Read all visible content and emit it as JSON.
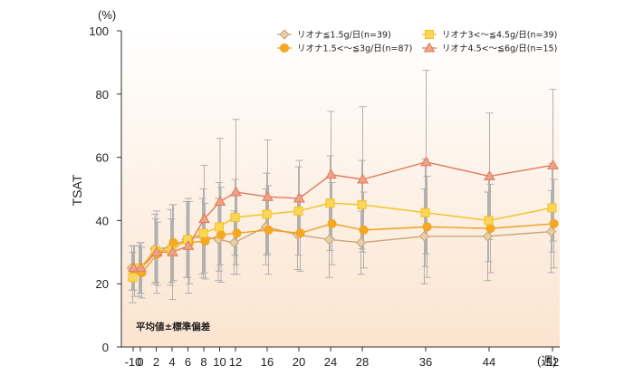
{
  "chart_data": {
    "type": "line",
    "ylabel": "TSAT",
    "yunit": "(%)",
    "xunit": "(週)",
    "note": "平均値±標準偏差",
    "ylim": [
      0,
      100
    ],
    "yticks": [
      0,
      20,
      40,
      60,
      80,
      100
    ],
    "xticks": [
      -10,
      0,
      2,
      4,
      6,
      8,
      10,
      12,
      16,
      20,
      24,
      28,
      36,
      44,
      52
    ],
    "xtick_labels": [
      "-10",
      "0",
      "2",
      "4",
      "6",
      "8",
      "10",
      "12",
      "16",
      "20",
      "24",
      "28",
      "36",
      "44",
      "52"
    ],
    "x": [
      -10,
      0,
      2,
      4,
      6,
      8,
      10,
      12,
      16,
      20,
      24,
      28,
      36,
      44,
      52
    ],
    "grid": false,
    "legend_position": "top-right",
    "colors": {
      "background_top": "#ffffff",
      "background_bottom": "#fbe4cf",
      "axis": "#333333",
      "errorbar": "#aaaaaa"
    },
    "series": [
      {
        "name": "リオナ≦1.5g/日(n=39)",
        "marker": "diamond",
        "color": "#c8a779",
        "fill": "#e6cfa6",
        "values": [
          25,
          24,
          31,
          31.5,
          34,
          35,
          34,
          33,
          38,
          35.5,
          34,
          33,
          35,
          35,
          36.5
        ],
        "sd": [
          7,
          8,
          11,
          12,
          12,
          12,
          13,
          10,
          12,
          11,
          12,
          10,
          15,
          14,
          13
        ]
      },
      {
        "name": "リオナ1.5<～≦3g/日(n=87)",
        "marker": "circle",
        "color": "#f0a020",
        "fill": "#f6a91e",
        "values": [
          24,
          23.5,
          29.5,
          33,
          33,
          33.5,
          35.5,
          36,
          37,
          36,
          39,
          37,
          38,
          37.5,
          39
        ],
        "sd": [
          8,
          8,
          10,
          12,
          13,
          12,
          15,
          13,
          14,
          12,
          13,
          12,
          16,
          14,
          14
        ]
      },
      {
        "name": "リオナ3<～≦4.5g/日(n=39)",
        "marker": "square",
        "color": "#f2c21c",
        "fill": "#fbd65a",
        "values": [
          22,
          25,
          30.5,
          30.5,
          34,
          36,
          38,
          41,
          42,
          43,
          45.5,
          45,
          42.5,
          40,
          44
        ],
        "sd": [
          8,
          8,
          10,
          10,
          12,
          14,
          14,
          12,
          13,
          14,
          15,
          14,
          17,
          13,
          14
        ]
      },
      {
        "name": "リオナ4.5<～≦6g/日(n=15)",
        "marker": "triangle",
        "color": "#e07a5f",
        "fill": "#eca383",
        "values": [
          25,
          25,
          30,
          30,
          32,
          40.5,
          46,
          49,
          47.5,
          47,
          54.5,
          53,
          58.5,
          54,
          57.5
        ],
        "sd": [
          7,
          8,
          13,
          15,
          15,
          17,
          20,
          23,
          18,
          12,
          20,
          23,
          29,
          20,
          24
        ]
      }
    ]
  },
  "legend_order": [
    0,
    1,
    2,
    3
  ]
}
